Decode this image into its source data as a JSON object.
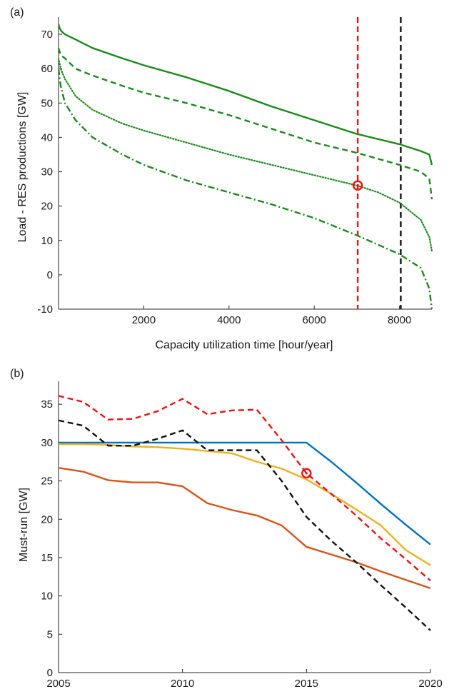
{
  "chart_data": [
    {
      "panel_label": "(a)",
      "type": "line",
      "title": "",
      "xlabel": "Capacity utilization time [hour/year]",
      "ylabel": "Load - RES productions [GW]",
      "xlim": [
        0,
        8760
      ],
      "ylim": [
        -10,
        75
      ],
      "xticks": [
        2000,
        4000,
        6000,
        8000
      ],
      "yticks": [
        -10,
        0,
        10,
        20,
        30,
        40,
        50,
        60,
        70
      ],
      "grid": false,
      "legend": "none",
      "series": [
        {
          "style": "solid",
          "color": "#1a8a1a",
          "points": [
            [
              0,
              73
            ],
            [
              20,
              72
            ],
            [
              60,
              71
            ],
            [
              150,
              70
            ],
            [
              400,
              68.5
            ],
            [
              800,
              66
            ],
            [
              1500,
              63
            ],
            [
              2000,
              61
            ],
            [
              3000,
              57.5
            ],
            [
              4000,
              53.5
            ],
            [
              5000,
              49
            ],
            [
              6000,
              45
            ],
            [
              7000,
              41
            ],
            [
              8000,
              38
            ],
            [
              8500,
              36
            ],
            [
              8700,
              35
            ],
            [
              8760,
              32
            ]
          ]
        },
        {
          "style": "dashed",
          "color": "#1a8a1a",
          "points": [
            [
              0,
              66
            ],
            [
              50,
              64
            ],
            [
              150,
              63
            ],
            [
              400,
              60
            ],
            [
              800,
              58
            ],
            [
              1500,
              55
            ],
            [
              2000,
              53
            ],
            [
              3000,
              50
            ],
            [
              4000,
              46.5
            ],
            [
              5000,
              42.5
            ],
            [
              6000,
              38.5
            ],
            [
              7000,
              35.5
            ],
            [
              8000,
              32
            ],
            [
              8500,
              30
            ],
            [
              8700,
              28
            ],
            [
              8760,
              22
            ]
          ]
        },
        {
          "style": "dotted",
          "color": "#1a8a1a",
          "points": [
            [
              0,
              63
            ],
            [
              50,
              60
            ],
            [
              150,
              57
            ],
            [
              400,
              52
            ],
            [
              800,
              48
            ],
            [
              1500,
              44
            ],
            [
              2000,
              42
            ],
            [
              3000,
              38.5
            ],
            [
              4000,
              35
            ],
            [
              5000,
              32
            ],
            [
              6000,
              29
            ],
            [
              7000,
              26
            ],
            [
              7500,
              24
            ],
            [
              8000,
              21
            ],
            [
              8500,
              16
            ],
            [
              8700,
              11
            ],
            [
              8760,
              7
            ]
          ]
        },
        {
          "style": "dashdot",
          "color": "#1a8a1a",
          "points": [
            [
              0,
              60
            ],
            [
              50,
              55
            ],
            [
              150,
              50
            ],
            [
              400,
              45
            ],
            [
              800,
              40
            ],
            [
              1500,
              35
            ],
            [
              2000,
              32
            ],
            [
              3000,
              27.5
            ],
            [
              4000,
              24
            ],
            [
              5000,
              20.5
            ],
            [
              6000,
              16.5
            ],
            [
              7000,
              11.5
            ],
            [
              8000,
              6
            ],
            [
              8500,
              2
            ],
            [
              8700,
              -4
            ],
            [
              8760,
              -10
            ]
          ]
        }
      ],
      "vlines": [
        {
          "x": 7020,
          "color": "#ee1111",
          "style": "dashed"
        },
        {
          "x": 8030,
          "color": "#111111",
          "style": "dashed"
        }
      ],
      "marker": {
        "x": 7020,
        "y": 26,
        "color": "#ee1111",
        "shape": "circle"
      }
    },
    {
      "panel_label": "(b)",
      "type": "line",
      "title": "",
      "xlabel": "",
      "ylabel": "Must-run [GW]",
      "xlim": [
        2005,
        2020
      ],
      "ylim": [
        0,
        38
      ],
      "xticks": [
        2005,
        2010,
        2015,
        2020
      ],
      "yticks": [
        0,
        5,
        10,
        15,
        20,
        25,
        30,
        35
      ],
      "grid": false,
      "legend": "none",
      "series": [
        {
          "style": "solid",
          "color": "#0072bd",
          "points": [
            [
              2005,
              30
            ],
            [
              2006,
              30
            ],
            [
              2007,
              30
            ],
            [
              2008,
              30
            ],
            [
              2009,
              30
            ],
            [
              2010,
              30
            ],
            [
              2011,
              30
            ],
            [
              2012,
              30
            ],
            [
              2013,
              30
            ],
            [
              2014,
              30
            ],
            [
              2015,
              30
            ],
            [
              2016,
              27.5
            ],
            [
              2017,
              24.8
            ],
            [
              2018,
              22
            ],
            [
              2019,
              19.3
            ],
            [
              2020,
              16.7
            ]
          ]
        },
        {
          "style": "solid",
          "color": "#edb120",
          "points": [
            [
              2005,
              29.8
            ],
            [
              2006,
              29.8
            ],
            [
              2007,
              29.7
            ],
            [
              2008,
              29.5
            ],
            [
              2009,
              29.4
            ],
            [
              2010,
              29.2
            ],
            [
              2011,
              28.9
            ],
            [
              2012,
              28.6
            ],
            [
              2013,
              27.5
            ],
            [
              2014,
              26.6
            ],
            [
              2015,
              25.2
            ],
            [
              2016,
              23.3
            ],
            [
              2017,
              21.3
            ],
            [
              2018,
              19.2
            ],
            [
              2019,
              16
            ],
            [
              2020,
              14
            ]
          ]
        },
        {
          "style": "solid",
          "color": "#d95319",
          "points": [
            [
              2005,
              26.7
            ],
            [
              2006,
              26.2
            ],
            [
              2007,
              25.1
            ],
            [
              2008,
              24.8
            ],
            [
              2009,
              24.8
            ],
            [
              2010,
              24.3
            ],
            [
              2011,
              22.1
            ],
            [
              2012,
              21.2
            ],
            [
              2013,
              20.5
            ],
            [
              2014,
              19.2
            ],
            [
              2015,
              16.4
            ],
            [
              2016,
              15.4
            ],
            [
              2017,
              14.4
            ],
            [
              2018,
              13.2
            ],
            [
              2019,
              12.1
            ],
            [
              2020,
              11
            ]
          ]
        },
        {
          "style": "dashed",
          "color": "#ee1111",
          "points": [
            [
              2005,
              36.1
            ],
            [
              2006,
              35.3
            ],
            [
              2007,
              33
            ],
            [
              2008,
              33.1
            ],
            [
              2009,
              34.1
            ],
            [
              2010,
              35.7
            ],
            [
              2011,
              33.7
            ],
            [
              2012,
              34.2
            ],
            [
              2013,
              34.3
            ],
            [
              2014,
              30.3
            ],
            [
              2015,
              26
            ],
            [
              2016,
              23.3
            ],
            [
              2017,
              20.5
            ],
            [
              2018,
              17.5
            ],
            [
              2019,
              14.8
            ],
            [
              2020,
              12
            ]
          ]
        },
        {
          "style": "dashed",
          "color": "#111111",
          "points": [
            [
              2005,
              32.9
            ],
            [
              2006,
              32.2
            ],
            [
              2007,
              29.6
            ],
            [
              2008,
              29.6
            ],
            [
              2009,
              30.5
            ],
            [
              2010,
              31.6
            ],
            [
              2011,
              29
            ],
            [
              2012,
              29
            ],
            [
              2013,
              29
            ],
            [
              2014,
              25
            ],
            [
              2015,
              20.3
            ],
            [
              2016,
              17.2
            ],
            [
              2017,
              14.4
            ],
            [
              2018,
              11.4
            ],
            [
              2019,
              8.5
            ],
            [
              2020,
              5.5
            ]
          ]
        }
      ],
      "marker": {
        "x": 2015,
        "y": 26,
        "color": "#ee1111",
        "shape": "circle"
      }
    }
  ]
}
